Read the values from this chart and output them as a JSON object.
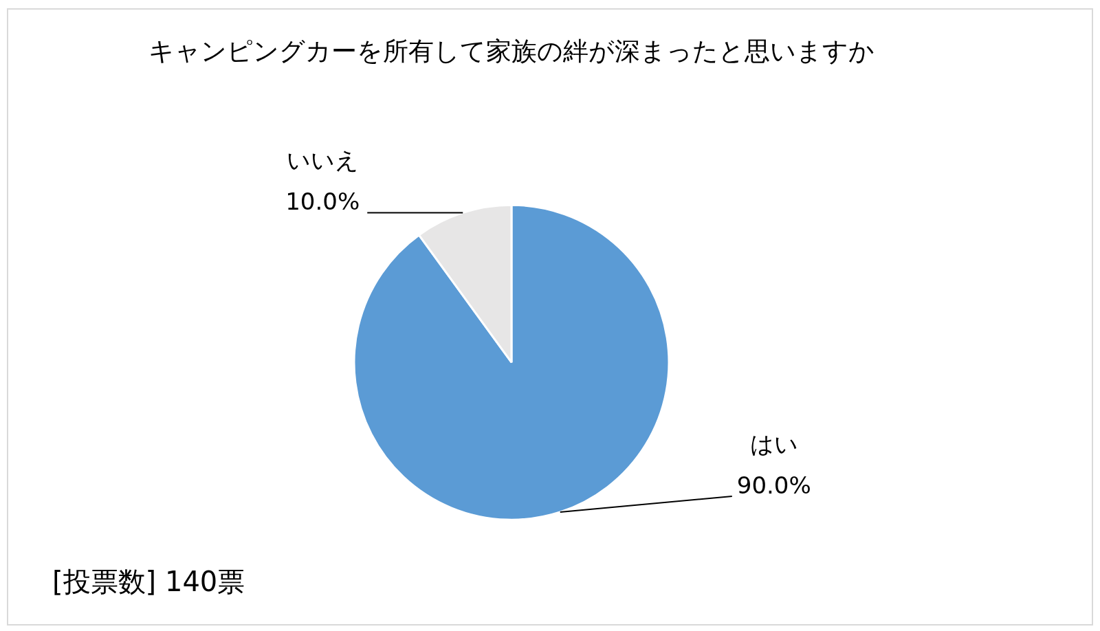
{
  "chart_data": {
    "type": "pie",
    "title": "キャンピングカーを所有して家族の絆が深まったと思いますか",
    "categories": [
      "はい",
      "いいえ"
    ],
    "values": [
      90,
      10
    ],
    "colors": [
      "#5b9bd5",
      "#e7e6e6"
    ],
    "value_labels": [
      "90.0%",
      "10.0%"
    ],
    "legend": false,
    "annotations": [
      "[投票数] 140票"
    ]
  }
}
